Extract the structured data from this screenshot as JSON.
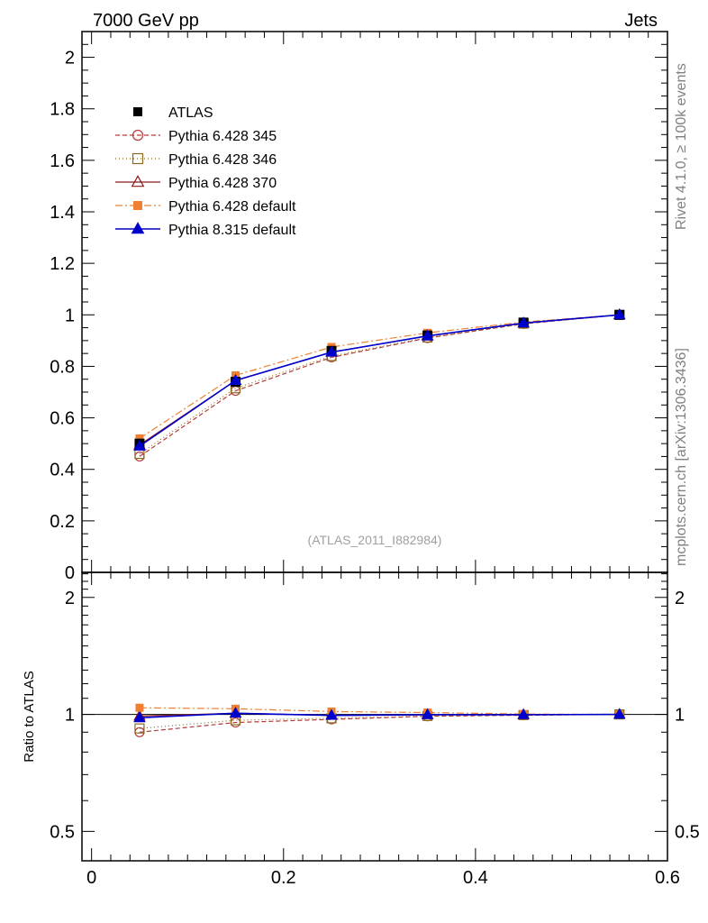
{
  "header": {
    "left": "7000 GeV pp",
    "right": "Jets"
  },
  "side_labels": {
    "rivet": "Rivet 4.1.0, ≥ 100k events",
    "mcplots": "mcplots.cern.ch [arXiv:1306.3436]"
  },
  "watermark": "(ATLAS_2011_I882984)",
  "ratio_ylabel": "Ratio to ATLAS",
  "chart_data": [
    {
      "type": "line",
      "panel": "main",
      "xlim": [
        -0.01,
        0.6
      ],
      "ylim": [
        0,
        2.1
      ],
      "y_ticks": [
        0,
        0.2,
        0.4,
        0.6,
        0.8,
        1,
        1.2,
        1.4,
        1.6,
        1.8,
        2
      ],
      "y_tick_labels": [
        "0",
        "0.2",
        "0.4",
        "0.6",
        "0.8",
        "1",
        "1.2",
        "1.4",
        "1.6",
        "1.8",
        "2"
      ],
      "x": [
        0.05,
        0.15,
        0.25,
        0.35,
        0.45,
        0.55
      ],
      "series": [
        {
          "name": "ATLAS",
          "color": "#000000",
          "marker": "square-filled",
          "dash": "none",
          "values": [
            0.5,
            0.74,
            0.86,
            0.92,
            0.97,
            1.0
          ]
        },
        {
          "name": "Pythia 6.428 345",
          "color": "#b33a3a",
          "marker": "circle-open",
          "dash": "5,3",
          "values": [
            0.45,
            0.705,
            0.835,
            0.91,
            0.965,
            1.0
          ]
        },
        {
          "name": "Pythia 6.428 346",
          "color": "#8b6b1f",
          "marker": "square-open",
          "dash": "1,3",
          "values": [
            0.46,
            0.715,
            0.84,
            0.912,
            0.966,
            1.0
          ]
        },
        {
          "name": "Pythia 6.428 370",
          "color": "#8b1a1a",
          "marker": "triangle-open",
          "dash": "none",
          "values": [
            0.495,
            0.745,
            0.855,
            0.918,
            0.968,
            1.0
          ]
        },
        {
          "name": "Pythia 6.428 default",
          "color": "#f08030",
          "marker": "square-filled",
          "dash": "8,3,2,3",
          "values": [
            0.52,
            0.765,
            0.875,
            0.93,
            0.972,
            1.0
          ]
        },
        {
          "name": "Pythia 8.315 default",
          "color": "#0000cc",
          "marker": "triangle-filled",
          "dash": "none",
          "values": [
            0.49,
            0.745,
            0.855,
            0.918,
            0.968,
            1.0
          ]
        }
      ]
    },
    {
      "type": "line",
      "panel": "ratio",
      "xlabel": "",
      "ylabel": "Ratio to ATLAS",
      "xlim": [
        -0.01,
        0.6
      ],
      "ylim": [
        0.42,
        2.32
      ],
      "y_scale": "log",
      "y_ticks": [
        0.5,
        1,
        2
      ],
      "y_tick_labels": [
        "0.5",
        "1",
        "2"
      ],
      "x_ticks": [
        0,
        0.2,
        0.4,
        0.6
      ],
      "x_tick_labels": [
        "0",
        "0.2",
        "0.4",
        "0.6"
      ],
      "x": [
        0.05,
        0.15,
        0.25,
        0.35,
        0.45,
        0.55
      ],
      "series": [
        {
          "name": "Pythia 6.428 345",
          "values": [
            0.9,
            0.953,
            0.971,
            0.989,
            0.995,
            1.0
          ]
        },
        {
          "name": "Pythia 6.428 346",
          "values": [
            0.92,
            0.966,
            0.977,
            0.991,
            0.996,
            1.0
          ]
        },
        {
          "name": "Pythia 6.428 370",
          "values": [
            0.99,
            1.007,
            0.994,
            0.998,
            0.998,
            1.0
          ]
        },
        {
          "name": "Pythia 6.428 default",
          "values": [
            1.04,
            1.034,
            1.017,
            1.011,
            1.002,
            1.0
          ]
        },
        {
          "name": "Pythia 8.315 default",
          "values": [
            0.98,
            1.007,
            0.994,
            0.998,
            0.998,
            1.0
          ]
        }
      ]
    }
  ]
}
